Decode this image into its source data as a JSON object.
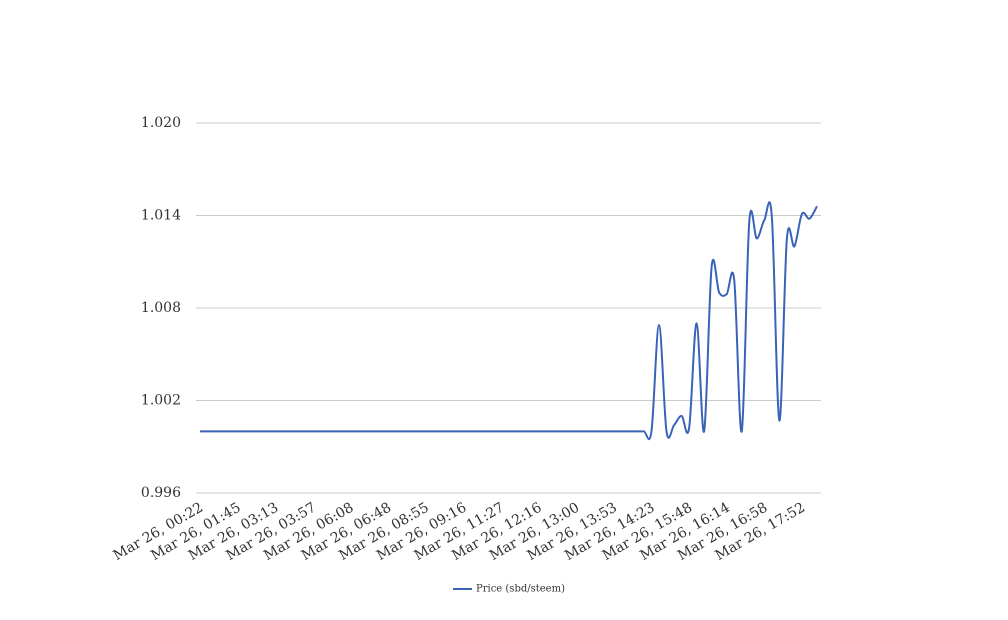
{
  "chart_data": {
    "type": "line",
    "categories": [
      "Mar 26, 00:22",
      null,
      null,
      null,
      null,
      "Mar 26, 01:45",
      null,
      null,
      null,
      null,
      "Mar 26, 03:13",
      null,
      null,
      null,
      null,
      "Mar 26, 03:57",
      null,
      null,
      null,
      null,
      "Mar 26, 06:08",
      null,
      null,
      null,
      null,
      "Mar 26, 06:48",
      null,
      null,
      null,
      null,
      "Mar 26, 08:55",
      null,
      null,
      null,
      null,
      "Mar 26, 09:16",
      null,
      null,
      null,
      null,
      "Mar 26, 11:27",
      null,
      null,
      null,
      null,
      "Mar 26, 12:16",
      null,
      null,
      null,
      null,
      "Mar 26, 13:00",
      null,
      null,
      null,
      null,
      "Mar 26, 13:53",
      null,
      null,
      null,
      null,
      "Mar 26, 14:23",
      null,
      null,
      null,
      null,
      "Mar 26, 15:48",
      null,
      null,
      null,
      null,
      "Mar 26, 16:14",
      null,
      null,
      null,
      null,
      "Mar 26, 16:58",
      null,
      null,
      null,
      null,
      "Mar 26, 17:52",
      null,
      null
    ],
    "series": [
      {
        "name": "Price (sbd/steem)",
        "color": "#3a63b8",
        "values": [
          1.0,
          1.0,
          1.0,
          1.0,
          1.0,
          1.0,
          1.0,
          1.0,
          1.0,
          1.0,
          1.0,
          1.0,
          1.0,
          1.0,
          1.0,
          1.0,
          1.0,
          1.0,
          1.0,
          1.0,
          1.0,
          1.0,
          1.0,
          1.0,
          1.0,
          1.0,
          1.0,
          1.0,
          1.0,
          1.0,
          1.0,
          1.0,
          1.0,
          1.0,
          1.0,
          1.0,
          1.0,
          1.0,
          1.0,
          1.0,
          1.0,
          1.0,
          1.0,
          1.0,
          1.0,
          1.0,
          1.0,
          1.0,
          1.0,
          1.0,
          1.0,
          1.0,
          1.0,
          1.0,
          1.0,
          1.0,
          1.0,
          1.0,
          1.0,
          1.0,
          1.0,
          1.0069,
          1.0,
          1.0004,
          1.001,
          1.0002,
          1.007,
          1.0,
          1.0107,
          1.009,
          1.0089,
          1.0098,
          1.0,
          1.0136,
          1.0125,
          1.0137,
          1.0139,
          1.0007,
          1.0125,
          1.012,
          1.0141,
          1.0138,
          1.0146
        ]
      }
    ],
    "ylim": [
      0.996,
      1.02
    ],
    "yticks": [
      0.996,
      1.002,
      1.008,
      1.014,
      {
        "value": 1.02,
        "label": "1.020"
      }
    ],
    "grid": true,
    "smooth": true,
    "legend": "bottom"
  }
}
